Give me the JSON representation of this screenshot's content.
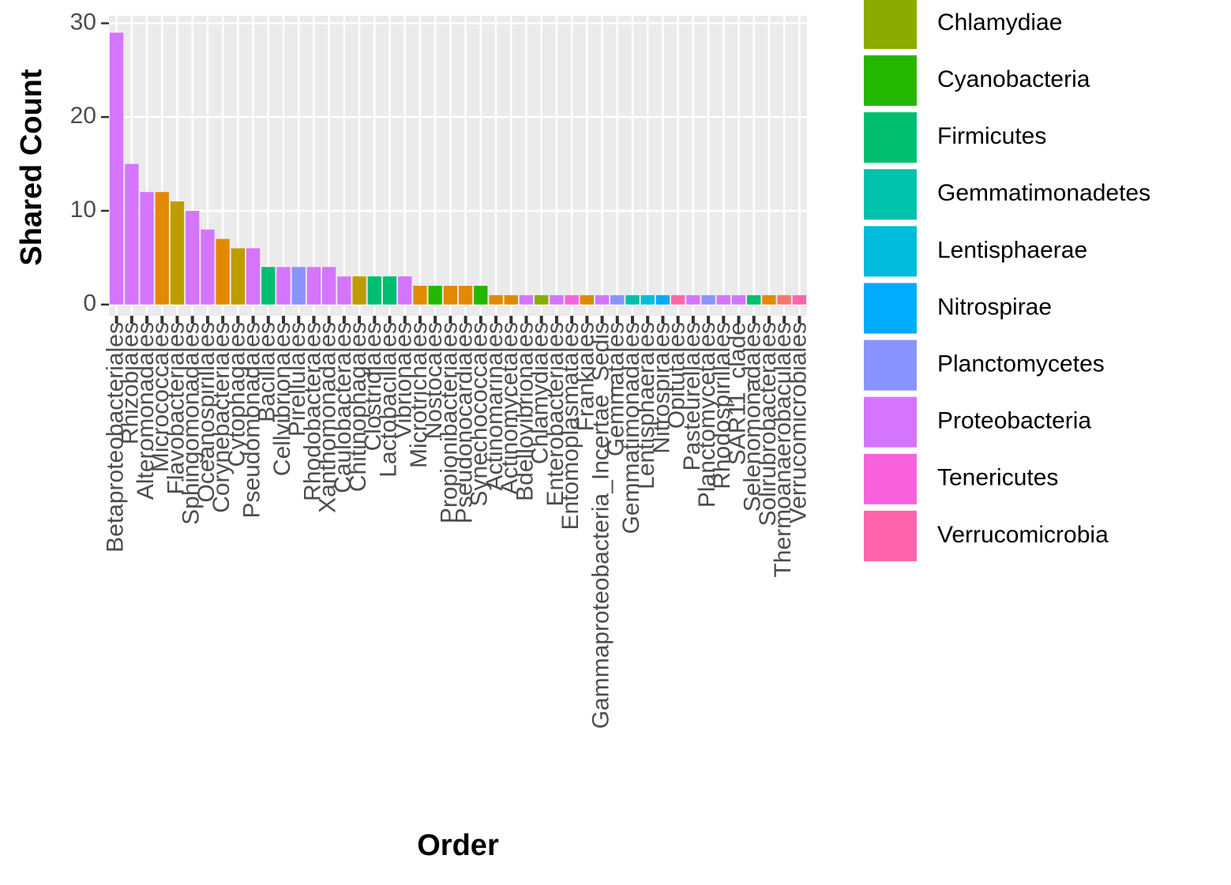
{
  "chart_data": {
    "type": "bar",
    "y_label": "Shared Count",
    "x_label": "Order",
    "categories": [
      "Betaproteobacteriales",
      "Rhizobiales",
      "Alteromonadales",
      "Micrococcales",
      "Flavobacteriales",
      "Sphingomonadales",
      "Oceanospirillales",
      "Corynebacteriales",
      "Cytophagales",
      "Pseudomonadales",
      "Bacillales",
      "Cellvibrionales",
      "Pirellulales",
      "Rhodobacterales",
      "Xanthomonadales",
      "Caulobacterales",
      "Chitinophagales",
      "Clostridiales",
      "Lactobacillales",
      "Vibrionales",
      "Microtrichales",
      "Nostocales",
      "Propionibacteriales",
      "Pseudonocardiales",
      "Synechococcales",
      "Actinomarinales",
      "Actinomycetales",
      "Bdellovibrionales",
      "Chlamydiales",
      "Enterobacteriales",
      "Entomoplasmatales",
      "Frankiales",
      "Gammaproteobacteria_Incertae_Sedis",
      "Gemmatales",
      "Gemmatimonadales",
      "Lentisphaerales",
      "Nitrospirales",
      "Opitutales",
      "Pasteurellales",
      "Planctomycetales",
      "Rhodospirillales",
      "SAR11_clade",
      "Selenomonadales",
      "Solirubrobacterales",
      "Thermoanaerobaculales",
      "Verrucomicrobiales"
    ],
    "values": [
      29,
      15,
      12,
      12,
      11,
      10,
      8,
      7,
      6,
      6,
      4,
      4,
      4,
      4,
      4,
      3,
      3,
      3,
      3,
      3,
      2,
      2,
      2,
      2,
      2,
      1,
      1,
      1,
      1,
      1,
      1,
      1,
      1,
      1,
      1,
      1,
      1,
      1,
      1,
      1,
      1,
      1,
      1,
      1,
      1,
      1
    ],
    "colors": [
      "#D575FE",
      "#D575FE",
      "#D575FE",
      "#E18A00",
      "#BE9C00",
      "#D575FE",
      "#D575FE",
      "#E18A00",
      "#BE9C00",
      "#D575FE",
      "#00BE70",
      "#D575FE",
      "#8B93FF",
      "#D575FE",
      "#D575FE",
      "#D575FE",
      "#BE9C00",
      "#00BE70",
      "#00BE70",
      "#D575FE",
      "#E18A00",
      "#24B700",
      "#E18A00",
      "#E18A00",
      "#24B700",
      "#E18A00",
      "#E18A00",
      "#D575FE",
      "#8CAB00",
      "#D575FE",
      "#F962DD",
      "#E18A00",
      "#D575FE",
      "#8B93FF",
      "#00C1AB",
      "#00BBDA",
      "#00ACFC",
      "#FF65AC",
      "#D575FE",
      "#8B93FF",
      "#D575FE",
      "#D575FE",
      "#00BE70",
      "#E18A00",
      "#F8766D",
      "#FF65AC"
    ],
    "legend": [
      {
        "name": "Chlamydiae",
        "color": "#8CAB00"
      },
      {
        "name": "Cyanobacteria",
        "color": "#24B700"
      },
      {
        "name": "Firmicutes",
        "color": "#00BE70"
      },
      {
        "name": "Gemmatimonadetes",
        "color": "#00C1AB"
      },
      {
        "name": "Lentisphaerae",
        "color": "#00BBDA"
      },
      {
        "name": "Nitrospirae",
        "color": "#00ACFC"
      },
      {
        "name": "Planctomycetes",
        "color": "#8B93FF"
      },
      {
        "name": "Proteobacteria",
        "color": "#D575FE"
      },
      {
        "name": "Tenericutes",
        "color": "#F962DD"
      },
      {
        "name": "Verrucomicrobia",
        "color": "#FF65AC"
      }
    ],
    "ylim": [
      -1.2,
      30.8
    ],
    "yticks": [
      0,
      10,
      20,
      30
    ],
    "grid": true
  }
}
